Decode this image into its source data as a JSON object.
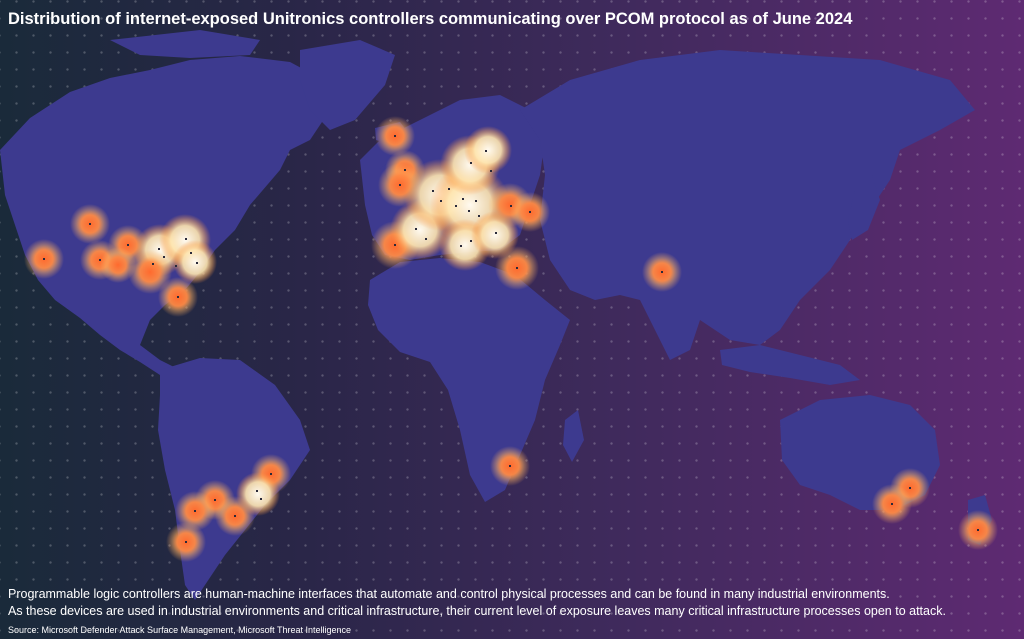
{
  "title": "Distribution of internet-exposed Unitronics controllers communicating over PCOM protocol as of June 2024",
  "description_line1": "Programmable logic controllers are human-machine interfaces that automate and control physical processes and can be found in many industrial environments.",
  "description_line2": "As these devices are used in industrial environments and critical infrastructure, their current level of exposure leaves many critical infrastructure processes open to attack.",
  "source": "Source: Microsoft Defender Attack Surface Management, Microsoft Threat Intelligence",
  "colors": {
    "land": "#3d3a8f",
    "hotspot_core": "#ff7a3d",
    "hotspot_glow": "#ffb060",
    "hotspot_dense": "#fff4d8"
  },
  "markers": [
    {
      "region": "west-canada",
      "density": "single"
    },
    {
      "region": "us-west-coast",
      "density": "single"
    },
    {
      "region": "us-central",
      "density": "medium"
    },
    {
      "region": "us-northeast",
      "density": "high"
    },
    {
      "region": "us-southeast",
      "density": "single"
    },
    {
      "region": "iceland-uk",
      "density": "single"
    },
    {
      "region": "western-europe",
      "density": "very-high"
    },
    {
      "region": "central-europe",
      "density": "very-high"
    },
    {
      "region": "scandinavia",
      "density": "high"
    },
    {
      "region": "eastern-europe",
      "density": "medium"
    },
    {
      "region": "israel",
      "density": "single"
    },
    {
      "region": "india",
      "density": "single"
    },
    {
      "region": "south-africa",
      "density": "single"
    },
    {
      "region": "brazil-north",
      "density": "medium"
    },
    {
      "region": "brazil-south",
      "density": "medium"
    },
    {
      "region": "argentina",
      "density": "single"
    },
    {
      "region": "australia-se",
      "density": "medium"
    },
    {
      "region": "new-zealand",
      "density": "single"
    }
  ]
}
